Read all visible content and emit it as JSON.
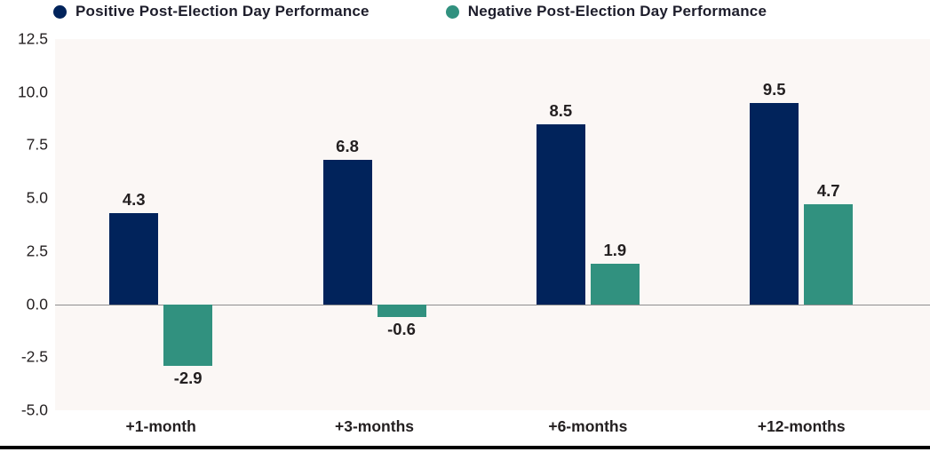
{
  "chart_data": {
    "type": "bar",
    "title": "",
    "xlabel": "",
    "ylabel": "",
    "categories": [
      "+1-month",
      "+3-months",
      "+6-months",
      "+12-months"
    ],
    "series": [
      {
        "name": "Positive Post-Election Day Performance",
        "color": "#01235b",
        "values": [
          4.3,
          6.8,
          8.5,
          9.5
        ],
        "labels": [
          "4.3",
          "6.8",
          "8.5",
          "9.5"
        ]
      },
      {
        "name": "Negative Post-Election Day Performance",
        "color": "#31917f",
        "values": [
          -2.9,
          -0.6,
          1.9,
          4.7
        ],
        "labels": [
          "-2.9",
          "-0.6",
          "1.9",
          "4.7"
        ]
      }
    ],
    "ylim": [
      -5.0,
      12.5
    ],
    "yticks": [
      12.5,
      10.0,
      7.5,
      5.0,
      2.5,
      0.0,
      -2.5,
      -5.0
    ],
    "ytick_labels": [
      "12.5",
      "10.0",
      "7.5",
      "5.0",
      "2.5",
      "0.0",
      "-2.5",
      "-5.0"
    ],
    "grid": false,
    "legend_position": "top",
    "band_centers_pct": [
      12.1,
      36.5,
      60.9,
      85.3
    ]
  },
  "legend": {
    "items": [
      {
        "label": "Positive Post-Election Day Performance",
        "color": "#01235b",
        "marker": "circle-icon"
      },
      {
        "label": "Negative Post-Election Day Performance",
        "color": "#31917f",
        "marker": "circle-icon"
      }
    ]
  },
  "colors": {
    "plot_background": "#fbf7f5",
    "zero_line": "#8e8e8e",
    "bottom_rule": "#000000",
    "text": "#231f20"
  }
}
